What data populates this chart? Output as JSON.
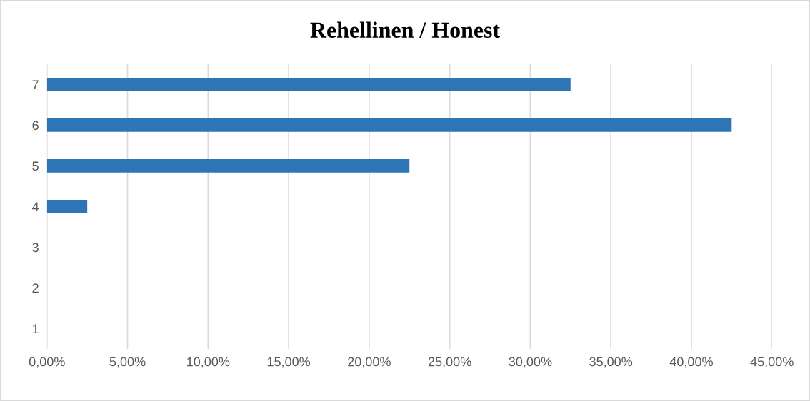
{
  "chart_data": {
    "type": "bar",
    "orientation": "horizontal",
    "title": "Rehellinen / Honest",
    "categories": [
      "7",
      "6",
      "5",
      "4",
      "3",
      "2",
      "1"
    ],
    "values": [
      32.5,
      42.5,
      22.5,
      2.5,
      0,
      0,
      0
    ],
    "color": "#2e75b6",
    "xlim": [
      0,
      45
    ],
    "xticks": [
      {
        "value": 0,
        "label": "0,00%"
      },
      {
        "value": 5,
        "label": "5,00%"
      },
      {
        "value": 10,
        "label": "10,00%"
      },
      {
        "value": 15,
        "label": "15,00%"
      },
      {
        "value": 20,
        "label": "20,00%"
      },
      {
        "value": 25,
        "label": "25,00%"
      },
      {
        "value": 30,
        "label": "30,00%"
      },
      {
        "value": 35,
        "label": "35,00%"
      },
      {
        "value": 40,
        "label": "40,00%"
      },
      {
        "value": 45,
        "label": "45,00%"
      }
    ],
    "grid": "x",
    "legend": false
  }
}
